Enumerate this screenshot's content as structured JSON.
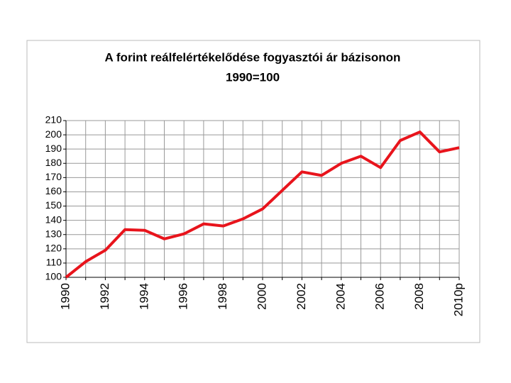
{
  "chart_data": {
    "type": "line",
    "title": "A forint reálfelértékelődése fogyasztói ár bázisonon",
    "subtitle": "1990=100",
    "categories": [
      "1990",
      null,
      "1992",
      null,
      "1994",
      null,
      "1996",
      null,
      "1998",
      null,
      "2000",
      null,
      "2002",
      null,
      "2004",
      null,
      "2006",
      null,
      "2008",
      null,
      "2010p"
    ],
    "values": [
      100,
      111,
      119,
      133.5,
      133,
      127,
      130.5,
      137.5,
      136,
      141,
      148,
      161,
      174,
      171.5,
      180,
      185,
      177,
      196,
      202,
      188,
      191
    ],
    "color": "#e8141c",
    "ylim": [
      100,
      210
    ],
    "yticks": [
      100,
      110,
      120,
      130,
      140,
      150,
      160,
      170,
      180,
      190,
      200,
      210
    ],
    "grid": true
  }
}
